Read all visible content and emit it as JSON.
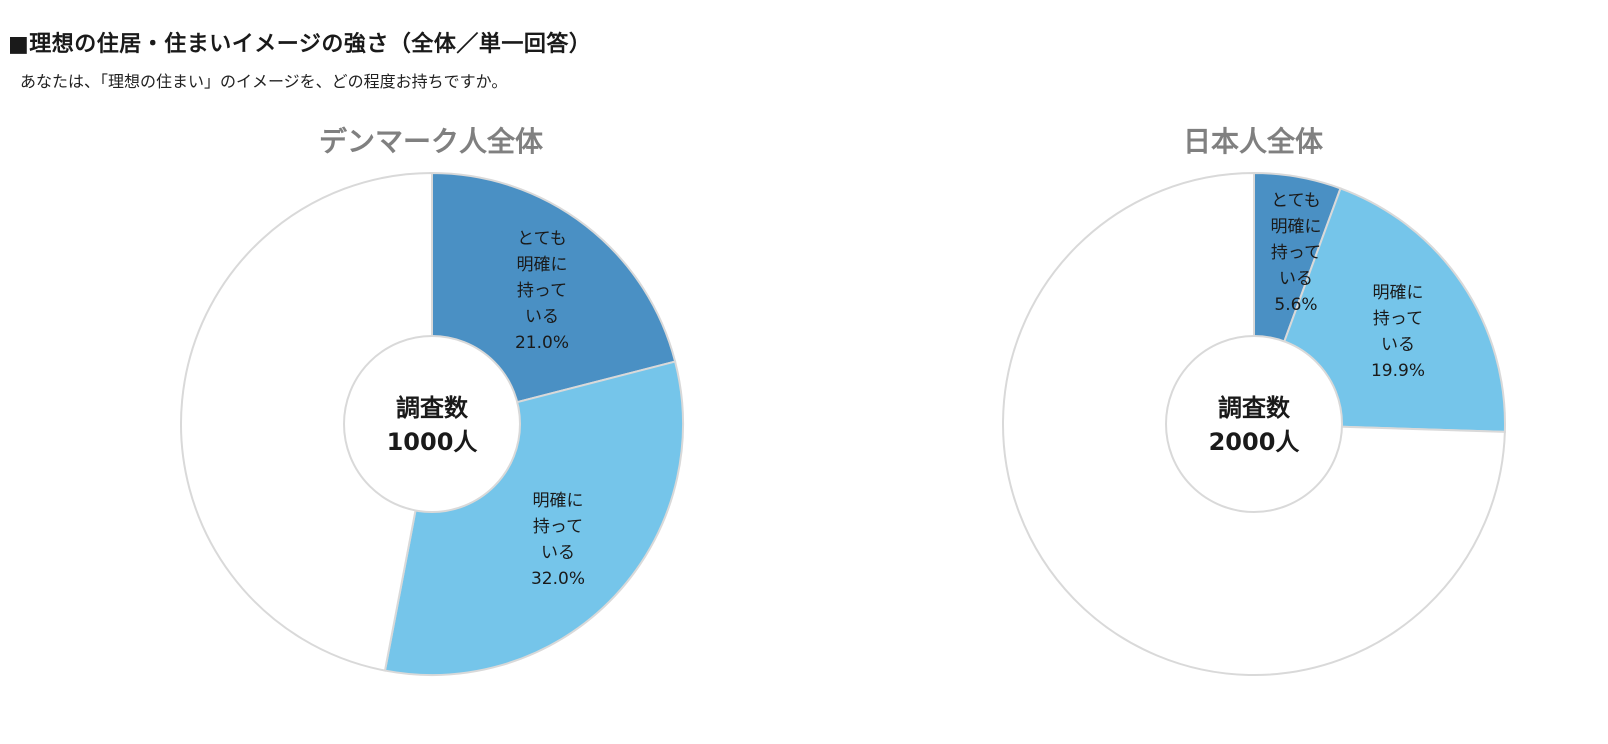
{
  "heading": "■理想の住居・住まいイメージの強さ（全体／単一回答）",
  "subheading": "あなたは、「理想の住まい」のイメージを、どの程度お持ちですか。",
  "colors": {
    "dark_blue": "#4A90C4",
    "light_blue": "#75C5EA",
    "white": "#FFFFFF",
    "border": "#D9D9D9"
  },
  "chart_data": [
    {
      "type": "pie",
      "title": "デンマーク人全体",
      "center_label": [
        "調査数",
        "1000人"
      ],
      "slices": [
        {
          "label_lines": [
            "とても",
            "明確に",
            "持って",
            "いる"
          ],
          "value_text": "21.0%",
          "value": 21.0,
          "color": "#4A90C4"
        },
        {
          "label_lines": [
            "明確に",
            "持って",
            "いる"
          ],
          "value_text": "32.0%",
          "value": 32.0,
          "color": "#75C5EA"
        },
        {
          "label_lines": [],
          "value_text": "",
          "value": 47.0,
          "color": "#FFFFFF"
        }
      ]
    },
    {
      "type": "pie",
      "title": "日本人全体",
      "center_label": [
        "調査数",
        "2000人"
      ],
      "slices": [
        {
          "label_lines": [
            "とても",
            "明確に",
            "持って",
            "いる"
          ],
          "value_text": "5.6%",
          "value": 5.6,
          "color": "#4A90C4"
        },
        {
          "label_lines": [
            "明確に",
            "持って",
            "いる"
          ],
          "value_text": "19.9%",
          "value": 19.9,
          "color": "#75C5EA"
        },
        {
          "label_lines": [],
          "value_text": "",
          "value": 74.5,
          "color": "#FFFFFF"
        }
      ]
    }
  ]
}
